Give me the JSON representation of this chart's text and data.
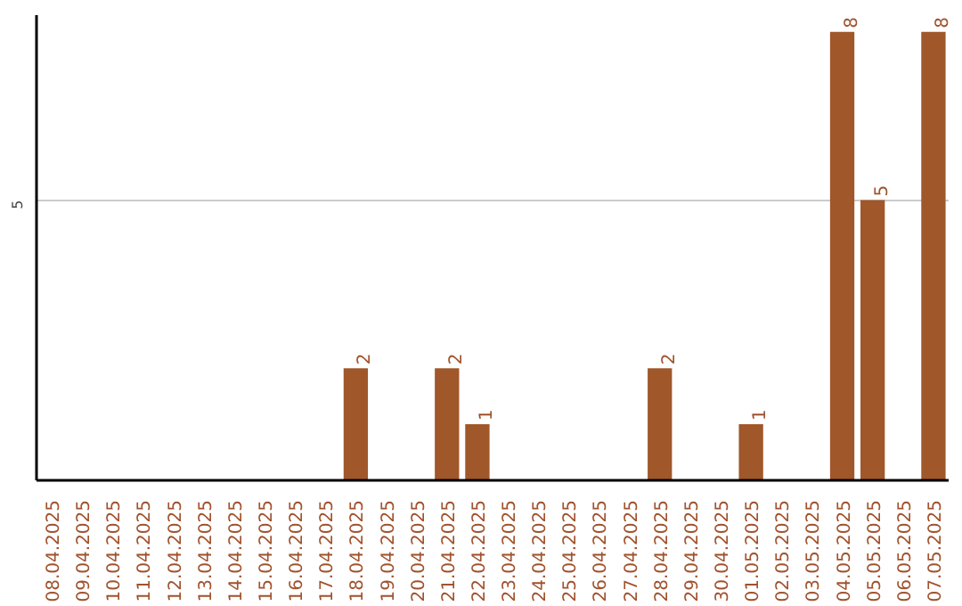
{
  "chart_data": {
    "type": "bar",
    "categories": [
      "08.04.2025",
      "09.04.2025",
      "10.04.2025",
      "11.04.2025",
      "12.04.2025",
      "13.04.2025",
      "14.04.2025",
      "15.04.2025",
      "16.04.2025",
      "17.04.2025",
      "18.04.2025",
      "19.04.2025",
      "20.04.2025",
      "21.04.2025",
      "22.04.2025",
      "23.04.2025",
      "24.04.2025",
      "25.04.2025",
      "26.04.2025",
      "27.04.2025",
      "28.04.2025",
      "29.04.2025",
      "30.04.2025",
      "01.05.2025",
      "02.05.2025",
      "03.05.2025",
      "04.05.2025",
      "05.05.2025",
      "06.05.2025",
      "07.05.2025"
    ],
    "values": [
      0,
      0,
      0,
      0,
      0,
      0,
      0,
      0,
      0,
      0,
      2,
      0,
      0,
      2,
      1,
      0,
      0,
      0,
      0,
      0,
      2,
      0,
      0,
      1,
      0,
      0,
      8,
      5,
      0,
      8
    ],
    "value_labels": [
      null,
      null,
      null,
      null,
      null,
      null,
      null,
      null,
      null,
      null,
      "2",
      null,
      null,
      "2",
      "1",
      null,
      null,
      null,
      null,
      null,
      "2",
      null,
      null,
      "1",
      null,
      null,
      "8",
      "5",
      null,
      "8"
    ],
    "color": "#a0572a",
    "ylim": [
      0,
      8.3
    ],
    "yticks": [
      5
    ],
    "grid": "y"
  }
}
